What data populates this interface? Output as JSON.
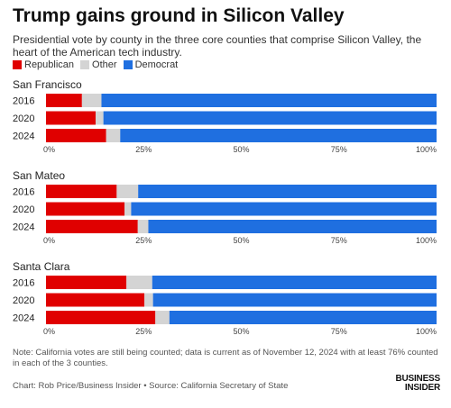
{
  "title": "Trump gains ground in Silicon Valley",
  "subtitle": "Presidential vote by county in the three core counties that comprise Silicon Valley, the heart of the American tech industry.",
  "legend": [
    {
      "label": "Republican",
      "color": "#e00000"
    },
    {
      "label": "Other",
      "color": "#d4d4d4"
    },
    {
      "label": "Democrat",
      "color": "#1f6fe0"
    }
  ],
  "chart_data": [
    {
      "type": "bar",
      "orientation": "horizontal",
      "stacked": true,
      "title": "San Francisco",
      "categories": [
        "2016",
        "2020",
        "2024"
      ],
      "series": [
        {
          "name": "Republican",
          "values": [
            9.2,
            12.7,
            15.4
          ]
        },
        {
          "name": "Other",
          "values": [
            5.0,
            2.0,
            3.6
          ]
        },
        {
          "name": "Democrat",
          "values": [
            85.8,
            85.3,
            81.0
          ]
        }
      ],
      "x_ticks": [
        "0%",
        "25%",
        "50%",
        "75%",
        "100%"
      ],
      "xlim": [
        0,
        100
      ]
    },
    {
      "type": "bar",
      "orientation": "horizontal",
      "stacked": true,
      "title": "San Mateo",
      "categories": [
        "2016",
        "2020",
        "2024"
      ],
      "series": [
        {
          "name": "Republican",
          "values": [
            18.1,
            20.1,
            23.5
          ]
        },
        {
          "name": "Other",
          "values": [
            5.5,
            1.7,
            2.7
          ]
        },
        {
          "name": "Democrat",
          "values": [
            76.4,
            78.2,
            73.8
          ]
        }
      ],
      "x_ticks": [
        "0%",
        "25%",
        "50%",
        "75%",
        "100%"
      ],
      "xlim": [
        0,
        100
      ]
    },
    {
      "type": "bar",
      "orientation": "horizontal",
      "stacked": true,
      "title": "Santa Clara",
      "categories": [
        "2016",
        "2020",
        "2024"
      ],
      "series": [
        {
          "name": "Republican",
          "values": [
            20.6,
            25.2,
            28.0
          ]
        },
        {
          "name": "Other",
          "values": [
            6.6,
            2.2,
            3.6
          ]
        },
        {
          "name": "Democrat",
          "values": [
            72.8,
            72.6,
            68.4
          ]
        }
      ],
      "x_ticks": [
        "0%",
        "25%",
        "50%",
        "75%",
        "100%"
      ],
      "xlim": [
        0,
        100
      ]
    }
  ],
  "note": "Note: California votes are still being counted; data is current as of November 12, 2024 with at least 76% counted in each of the 3 counties.",
  "credit": "Chart: Rob Price/Business Insider • Source: California Secretary of State",
  "logo": {
    "line1": "BUSINESS",
    "line2": "INSIDER"
  }
}
